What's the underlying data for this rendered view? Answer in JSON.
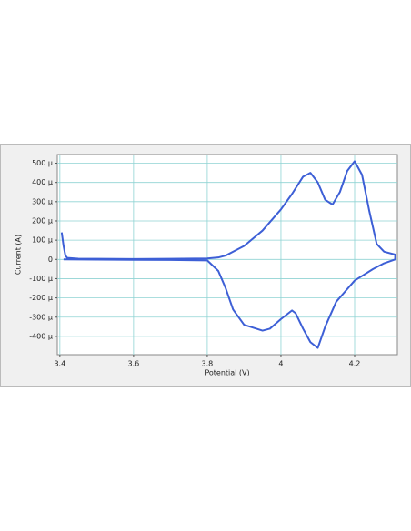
{
  "chart_data": {
    "type": "line",
    "xlabel": "Potential (V)",
    "ylabel": "Current (A)",
    "x": [
      3.405,
      3.41,
      3.415,
      3.42,
      3.45,
      3.5,
      3.6,
      3.7,
      3.8,
      3.83,
      3.85,
      3.9,
      3.95,
      4.0,
      4.03,
      4.06,
      4.08,
      4.1,
      4.12,
      4.14,
      4.16,
      4.18,
      4.2,
      4.22,
      4.24,
      4.26,
      4.28,
      4.31,
      4.31,
      4.28,
      4.25,
      4.2,
      4.15,
      4.12,
      4.1,
      4.08,
      4.06,
      4.04,
      4.03,
      4.0,
      3.97,
      3.95,
      3.9,
      3.87,
      3.85,
      3.83,
      3.8,
      3.7,
      3.6,
      3.5,
      3.41
    ],
    "series": [
      {
        "name": "Current",
        "color": "#3d5fd6",
        "values": [
          0.00014,
          7e-05,
          2e-05,
          8e-06,
          4e-06,
          3e-06,
          2e-06,
          3e-06,
          5e-06,
          1e-05,
          2e-05,
          7e-05,
          0.00015,
          0.00026,
          0.00034,
          0.00043,
          0.00045,
          0.0004,
          0.00031,
          0.000285,
          0.00035,
          0.00046,
          0.00051,
          0.00044,
          0.00025,
          8e-05,
          4e-05,
          2.5e-05,
          0.0,
          -2e-05,
          -5e-05,
          -0.00011,
          -0.00022,
          -0.00035,
          -0.00046,
          -0.00043,
          -0.00036,
          -0.00028,
          -0.000265,
          -0.00031,
          -0.00036,
          -0.00037,
          -0.00034,
          -0.00026,
          -0.00015,
          -6e-05,
          -5e-06,
          -3e-06,
          -2e-06,
          -1e-06,
          0.0
        ]
      }
    ],
    "xlim": [
      3.393,
      4.316
    ],
    "ylim": [
      -0.000495,
      0.000545
    ],
    "xticks": [
      3.4,
      3.6,
      3.8,
      4,
      4.2
    ],
    "yticks": [
      {
        "value": -0.0004,
        "label": "-400 µ"
      },
      {
        "value": -0.0003,
        "label": "-300 µ"
      },
      {
        "value": -0.0002,
        "label": "-200 µ"
      },
      {
        "value": -0.0001,
        "label": "-100 µ"
      },
      0,
      {
        "value": 0.0001,
        "label": "100 µ"
      },
      {
        "value": 0.0002,
        "label": "200 µ"
      },
      {
        "value": 0.0003,
        "label": "300 µ"
      },
      {
        "value": 0.0004,
        "label": "400 µ"
      },
      {
        "value": 0.0005,
        "label": "500 µ"
      }
    ],
    "grid": true
  }
}
